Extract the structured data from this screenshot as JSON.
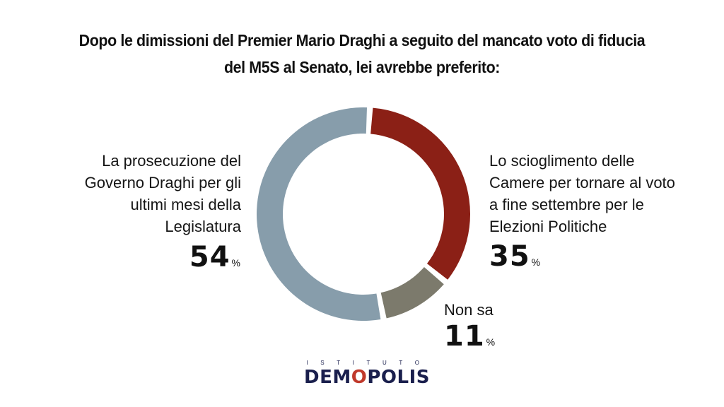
{
  "title_lines": [
    "Dopo le dimissioni del Premier Mario Draghi a seguito del mancato voto di fiducia",
    "del M5S al Senato, lei avrebbe preferito:"
  ],
  "chart_data": {
    "type": "pie",
    "variant": "donut",
    "slices": [
      {
        "label": "Lo scioglimento delle Camere per tornare al voto a fine settembre per le Elezioni Politiche",
        "value": 35,
        "color": "#8b2016"
      },
      {
        "label": "Non sa",
        "value": 11,
        "color": "#7c7a6c"
      },
      {
        "label": "La prosecuzione del Governo Draghi per gli ultimi mesi della Legislatura",
        "value": 54,
        "color": "#879dab"
      }
    ]
  },
  "labels": {
    "left_lines": [
      "La prosecuzione del",
      "Governo Draghi per gli",
      "ultimi mesi della",
      "Legislatura"
    ],
    "right_lines": [
      "Lo scioglimento delle",
      "Camere per tornare al voto",
      "a fine settembre per le",
      "Elezioni Politiche"
    ],
    "nonsa": "Non sa"
  },
  "percentages": {
    "left": "54",
    "right": "35",
    "nonsa": "11",
    "sign": "%"
  },
  "logo": {
    "sub": "ISTITUTO",
    "main_pre": "DEM",
    "main_o": "O",
    "main_post": "POLIS"
  }
}
